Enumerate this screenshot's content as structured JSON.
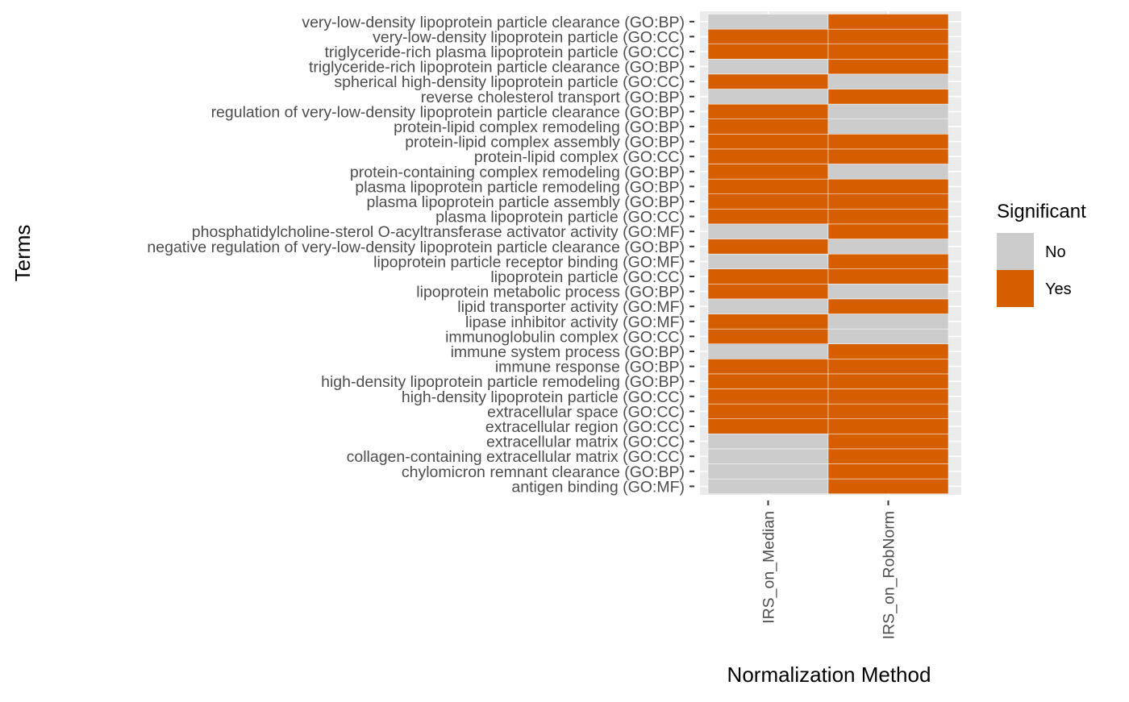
{
  "chart_data": {
    "type": "heatmap",
    "xlabel": "Normalization Method",
    "ylabel": "Terms",
    "x": [
      "IRS_on_Median",
      "IRS_on_RobNorm"
    ],
    "y": [
      "antigen binding (GO:MF)",
      "chylomicron remnant clearance (GO:BP)",
      "collagen-containing extracellular matrix (GO:CC)",
      "extracellular matrix (GO:CC)",
      "extracellular region (GO:CC)",
      "extracellular space (GO:CC)",
      "high-density lipoprotein particle (GO:CC)",
      "high-density lipoprotein particle remodeling (GO:BP)",
      "immune response (GO:BP)",
      "immune system process (GO:BP)",
      "immunoglobulin complex (GO:CC)",
      "lipase inhibitor activity (GO:MF)",
      "lipid transporter activity (GO:MF)",
      "lipoprotein metabolic process (GO:BP)",
      "lipoprotein particle (GO:CC)",
      "lipoprotein particle receptor binding (GO:MF)",
      "negative regulation of very-low-density lipoprotein particle clearance (GO:BP)",
      "phosphatidylcholine-sterol O-acyltransferase activator activity (GO:MF)",
      "plasma lipoprotein particle (GO:CC)",
      "plasma lipoprotein particle assembly (GO:BP)",
      "plasma lipoprotein particle remodeling (GO:BP)",
      "protein-containing complex remodeling (GO:BP)",
      "protein-lipid complex (GO:CC)",
      "protein-lipid complex assembly (GO:BP)",
      "protein-lipid complex remodeling (GO:BP)",
      "regulation of very-low-density lipoprotein particle clearance (GO:BP)",
      "reverse cholesterol transport (GO:BP)",
      "spherical high-density lipoprotein particle (GO:CC)",
      "triglyceride-rich lipoprotein particle clearance (GO:BP)",
      "triglyceride-rich plasma lipoprotein particle (GO:CC)",
      "very-low-density lipoprotein particle (GO:CC)",
      "very-low-density lipoprotein particle clearance (GO:BP)"
    ],
    "values": [
      [
        "No",
        "Yes"
      ],
      [
        "No",
        "Yes"
      ],
      [
        "No",
        "Yes"
      ],
      [
        "No",
        "Yes"
      ],
      [
        "Yes",
        "Yes"
      ],
      [
        "Yes",
        "Yes"
      ],
      [
        "Yes",
        "Yes"
      ],
      [
        "Yes",
        "Yes"
      ],
      [
        "Yes",
        "Yes"
      ],
      [
        "No",
        "Yes"
      ],
      [
        "Yes",
        "No"
      ],
      [
        "Yes",
        "No"
      ],
      [
        "No",
        "Yes"
      ],
      [
        "Yes",
        "No"
      ],
      [
        "Yes",
        "Yes"
      ],
      [
        "No",
        "Yes"
      ],
      [
        "Yes",
        "No"
      ],
      [
        "No",
        "Yes"
      ],
      [
        "Yes",
        "Yes"
      ],
      [
        "Yes",
        "Yes"
      ],
      [
        "Yes",
        "Yes"
      ],
      [
        "Yes",
        "No"
      ],
      [
        "Yes",
        "Yes"
      ],
      [
        "Yes",
        "Yes"
      ],
      [
        "Yes",
        "No"
      ],
      [
        "Yes",
        "No"
      ],
      [
        "No",
        "Yes"
      ],
      [
        "Yes",
        "No"
      ],
      [
        "No",
        "Yes"
      ],
      [
        "Yes",
        "Yes"
      ],
      [
        "Yes",
        "Yes"
      ],
      [
        "No",
        "Yes"
      ]
    ],
    "legend": {
      "title": "Significant",
      "position": "right",
      "entries": [
        {
          "label": "No",
          "color": "#cccccc"
        },
        {
          "label": "Yes",
          "color": "#d55e00"
        }
      ]
    },
    "panel_background": "#ebebeb",
    "grid": true
  }
}
